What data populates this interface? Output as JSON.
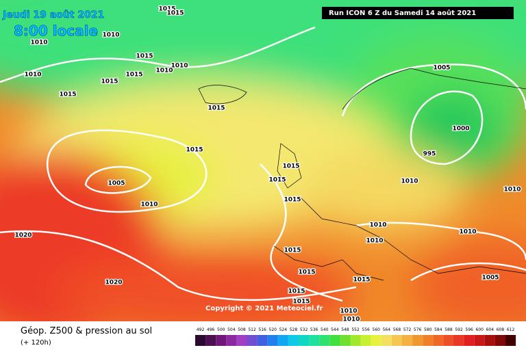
{
  "header": {
    "date": "Jeudi 19 août 2021",
    "time": "8:00 locale",
    "run": "Run ICON 6 Z du Samedi 14 août 2021"
  },
  "copyright": "Copyright © 2021 Meteociel.fr",
  "footer": {
    "title": "Géop. Z500 & pression au sol",
    "lead": "(+ 120h)"
  },
  "isobar_labels": [
    1015,
    1015,
    1010,
    1010,
    1015,
    1010,
    1010,
    1015,
    1010,
    1015,
    1015,
    1015,
    1005,
    1000,
    995,
    1015,
    1015,
    1015,
    1005,
    1010,
    1010,
    1010,
    1015,
    1010,
    1010,
    1020,
    1010,
    1015,
    1015,
    1005,
    1020,
    1015,
    1015,
    1015,
    1010,
    1010
  ],
  "legend": {
    "scale": [
      492,
      496,
      500,
      504,
      508,
      512,
      516,
      520,
      524,
      528,
      532,
      536,
      540,
      544,
      548,
      552,
      556,
      560,
      564,
      568,
      572,
      576,
      580,
      584,
      588,
      592,
      596,
      600,
      604,
      608,
      612
    ]
  }
}
